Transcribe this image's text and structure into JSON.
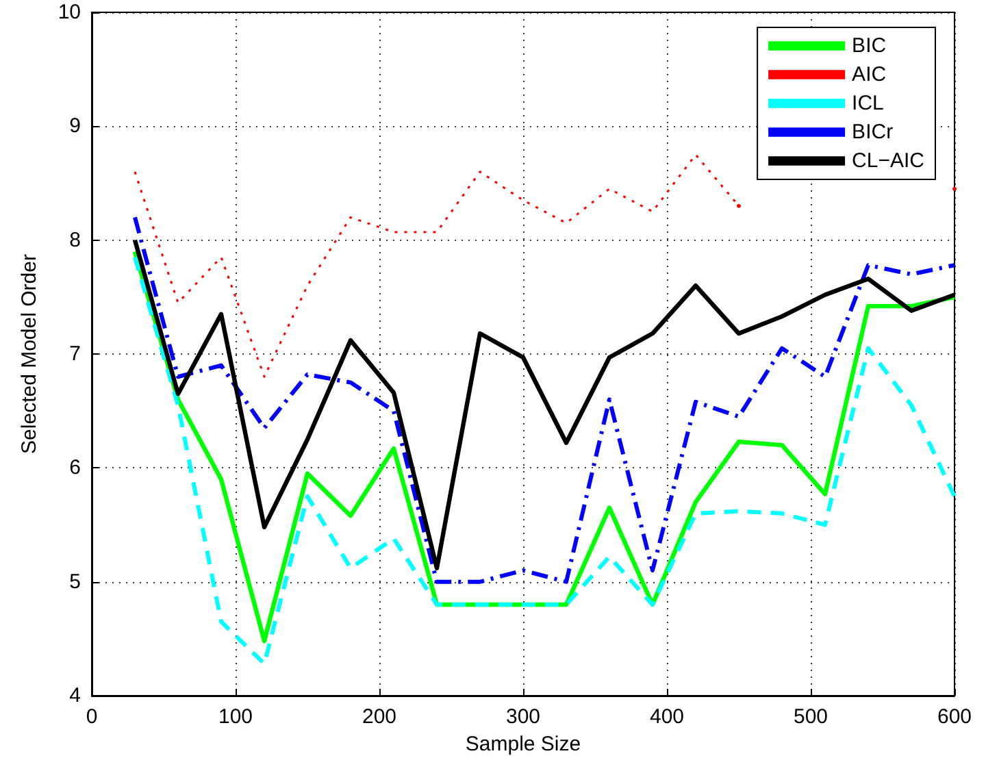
{
  "chart_data": {
    "type": "line",
    "xlabel": "Sample Size",
    "ylabel": "Selected Model Order",
    "x": [
      30,
      60,
      90,
      120,
      150,
      180,
      210,
      240,
      270,
      300,
      330,
      360,
      390,
      420,
      450,
      480,
      510,
      540,
      570,
      600
    ],
    "xlim": [
      0,
      600
    ],
    "xticks": [
      0,
      100,
      200,
      300,
      400,
      500,
      600
    ],
    "ylim": [
      4,
      10
    ],
    "yticks": [
      4,
      5,
      6,
      7,
      8,
      9,
      10
    ],
    "grid": true,
    "legend": "top right",
    "marker": "none",
    "series": [
      {
        "name": "BIC",
        "color": "#00ff00",
        "line_style": "solid",
        "values": [
          7.9,
          6.6,
          5.9,
          4.48,
          5.95,
          5.58,
          6.17,
          4.8,
          4.8,
          4.8,
          4.8,
          5.65,
          4.8,
          5.7,
          6.23,
          6.2,
          5.77,
          7.42,
          7.42,
          7.5
        ]
      },
      {
        "name": "AIC",
        "color": "#ff0000",
        "line_style": "dotted",
        "values": [
          8.6,
          7.45,
          7.85,
          6.8,
          7.6,
          8.2,
          8.07,
          8.07,
          8.6,
          8.35,
          8.15,
          8.45,
          8.25,
          8.75,
          8.3,
          null,
          null,
          null,
          null,
          8.45
        ]
      },
      {
        "name": "ICL",
        "color": "#00ffff",
        "line_style": "dashed",
        "values": [
          7.85,
          6.55,
          4.65,
          4.28,
          5.75,
          5.12,
          5.38,
          4.8,
          4.8,
          4.8,
          4.8,
          5.22,
          4.8,
          5.6,
          5.62,
          5.6,
          5.5,
          7.05,
          6.55,
          5.75
        ]
      },
      {
        "name": "BICr",
        "color": "#0000ff",
        "line_style": "dashdot",
        "values": [
          8.2,
          6.8,
          6.9,
          6.35,
          6.82,
          6.75,
          6.5,
          5.0,
          5.0,
          5.1,
          5.0,
          6.6,
          5.1,
          6.58,
          6.45,
          7.05,
          6.8,
          7.78,
          7.7,
          7.78
        ]
      },
      {
        "name": "CL−AIC",
        "color": "#000000",
        "line_style": "solid",
        "values": [
          8.0,
          6.65,
          7.35,
          5.48,
          6.25,
          7.12,
          6.66,
          5.12,
          7.18,
          6.97,
          6.22,
          6.97,
          7.18,
          7.6,
          7.18,
          7.33,
          7.52,
          7.66,
          7.38,
          7.52
        ]
      }
    ]
  }
}
